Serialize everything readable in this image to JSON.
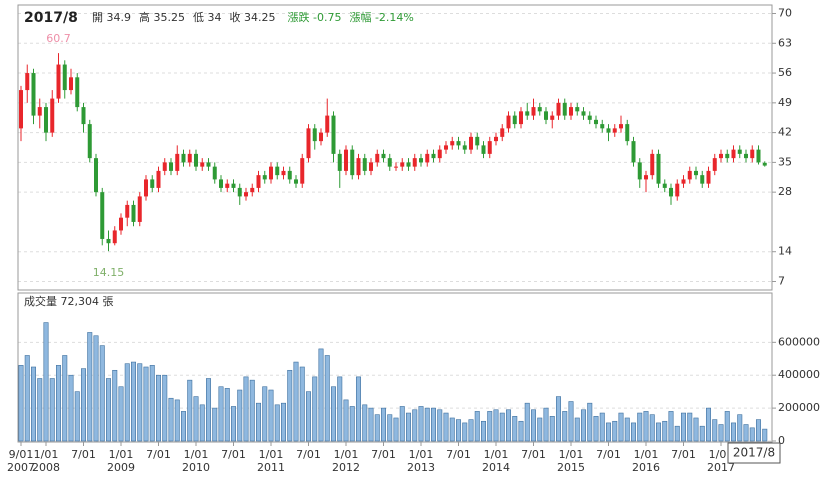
{
  "header": {
    "period": "2017/8",
    "items": [
      "開 34.9",
      "高 35.25",
      "低 34",
      "收 34.25"
    ],
    "change_items": [
      "漲跌 -0.75",
      "漲幅 -2.14%"
    ]
  },
  "chart_data": [
    {
      "type": "candlestick",
      "ylim": [
        5,
        72
      ],
      "yticks": [
        7,
        14,
        28,
        35,
        42,
        49,
        56,
        63,
        70
      ],
      "grid": true,
      "up_color": "#e8262b",
      "down_color": "#2e9a35",
      "annotations": [
        {
          "text": "60.7",
          "at": "high",
          "color": "#ee8fa8"
        },
        {
          "text": "14.15",
          "at": "low",
          "color": "#7fb069"
        }
      ],
      "series": [
        {
          "name": "OHLC",
          "values": [
            [
              43,
              53,
              40,
              52
            ],
            [
              52,
              58,
              49,
              56
            ],
            [
              56,
              57,
              44,
              46
            ],
            [
              46,
              50,
              43,
              48
            ],
            [
              48,
              49,
              40,
              42
            ],
            [
              42,
              52,
              41,
              50
            ],
            [
              50,
              60.7,
              49,
              58
            ],
            [
              58,
              59,
              50,
              52
            ],
            [
              52,
              57,
              51,
              55
            ],
            [
              55,
              56,
              47,
              48
            ],
            [
              48,
              49,
              42,
              44
            ],
            [
              44,
              45,
              35,
              36
            ],
            [
              36,
              37,
              27,
              28
            ],
            [
              28,
              29,
              15.5,
              17
            ],
            [
              17,
              19,
              14.15,
              16
            ],
            [
              16,
              20,
              15.5,
              19
            ],
            [
              19,
              23,
              18,
              22
            ],
            [
              22,
              26,
              20,
              25
            ],
            [
              25,
              26,
              20,
              21
            ],
            [
              21,
              28,
              20,
              27
            ],
            [
              27,
              32,
              26,
              31
            ],
            [
              31,
              32,
              28,
              29
            ],
            [
              29,
              34,
              28,
              33
            ],
            [
              33,
              36,
              32,
              35
            ],
            [
              35,
              36,
              32,
              33
            ],
            [
              33,
              39,
              32,
              37
            ],
            [
              37,
              38,
              34,
              35
            ],
            [
              35,
              38,
              34,
              37
            ],
            [
              37,
              38,
              33,
              34
            ],
            [
              34,
              36,
              33,
              35
            ],
            [
              35,
              36,
              33,
              34
            ],
            [
              34,
              35,
              30,
              31
            ],
            [
              31,
              32,
              28,
              29
            ],
            [
              29,
              31,
              28,
              30
            ],
            [
              30,
              31,
              28,
              29
            ],
            [
              29,
              30,
              25,
              27
            ],
            [
              27,
              29,
              26,
              28
            ],
            [
              28,
              30,
              27,
              29
            ],
            [
              29,
              33,
              28,
              32
            ],
            [
              32,
              33,
              30,
              31
            ],
            [
              31,
              35,
              30,
              34
            ],
            [
              34,
              35,
              31,
              32
            ],
            [
              32,
              34,
              31,
              33
            ],
            [
              33,
              34,
              30,
              31
            ],
            [
              31,
              32,
              29,
              30
            ],
            [
              30,
              37,
              29,
              36
            ],
            [
              36,
              44,
              35,
              43
            ],
            [
              43,
              44,
              38,
              40
            ],
            [
              40,
              43,
              39,
              42
            ],
            [
              42,
              50,
              41,
              46
            ],
            [
              46,
              47,
              35,
              37
            ],
            [
              37,
              38,
              29,
              33
            ],
            [
              33,
              39,
              32,
              38
            ],
            [
              38,
              39,
              31,
              32
            ],
            [
              32,
              37,
              31,
              36
            ],
            [
              36,
              37,
              32,
              33
            ],
            [
              33,
              36,
              32,
              35
            ],
            [
              35,
              38,
              34,
              37
            ],
            [
              37,
              38,
              35,
              36
            ],
            [
              36,
              37,
              33,
              34
            ],
            [
              34,
              35,
              33,
              34
            ],
            [
              34,
              36,
              33,
              35
            ],
            [
              35,
              36,
              33,
              34
            ],
            [
              34,
              37,
              33,
              36
            ],
            [
              36,
              37,
              34,
              35
            ],
            [
              35,
              38,
              34,
              37
            ],
            [
              37,
              38,
              35,
              36
            ],
            [
              36,
              39,
              35,
              38
            ],
            [
              38,
              40,
              37,
              39
            ],
            [
              39,
              41,
              38,
              40
            ],
            [
              40,
              41,
              38,
              39
            ],
            [
              39,
              40,
              37,
              38
            ],
            [
              38,
              42,
              37,
              41
            ],
            [
              41,
              42,
              38,
              39
            ],
            [
              39,
              40,
              36,
              37
            ],
            [
              37,
              41,
              36,
              40
            ],
            [
              40,
              42,
              39,
              41
            ],
            [
              41,
              44,
              40,
              43
            ],
            [
              43,
              47,
              42,
              46
            ],
            [
              46,
              47,
              43,
              44
            ],
            [
              44,
              48,
              43,
              47
            ],
            [
              47,
              49,
              45,
              46
            ],
            [
              46,
              50,
              45,
              48
            ],
            [
              48,
              49,
              46,
              47
            ],
            [
              47,
              48,
              44,
              45
            ],
            [
              45,
              47,
              43,
              46
            ],
            [
              46,
              50,
              45,
              49
            ],
            [
              49,
              50,
              45,
              46
            ],
            [
              46,
              49,
              45,
              48
            ],
            [
              48,
              49,
              46,
              47
            ],
            [
              47,
              48,
              45,
              46
            ],
            [
              46,
              47,
              44,
              45
            ],
            [
              45,
              46,
              43,
              44
            ],
            [
              44,
              45,
              42,
              43
            ],
            [
              43,
              44,
              40,
              42
            ],
            [
              42,
              44,
              41,
              43
            ],
            [
              43,
              46,
              42,
              44
            ],
            [
              44,
              45,
              39,
              40
            ],
            [
              40,
              41,
              34,
              35
            ],
            [
              35,
              36,
              29,
              31
            ],
            [
              31,
              33,
              28,
              32
            ],
            [
              32,
              38,
              31,
              37
            ],
            [
              37,
              38,
              29,
              30
            ],
            [
              30,
              31,
              28,
              29
            ],
            [
              29,
              30,
              25,
              27
            ],
            [
              27,
              31,
              26,
              30
            ],
            [
              30,
              32,
              29,
              31
            ],
            [
              31,
              34,
              30,
              33
            ],
            [
              33,
              34,
              31,
              32
            ],
            [
              32,
              33,
              29,
              30
            ],
            [
              30,
              34,
              29,
              33
            ],
            [
              33,
              37,
              32,
              36
            ],
            [
              36,
              38,
              35,
              37
            ],
            [
              37,
              38,
              35,
              36
            ],
            [
              36,
              39,
              35,
              38
            ],
            [
              38,
              39,
              36,
              37
            ],
            [
              37,
              38,
              35,
              36
            ],
            [
              36,
              39,
              35,
              38
            ],
            [
              38,
              39,
              34.5,
              35
            ],
            [
              34.9,
              35.25,
              34,
              34.25
            ]
          ]
        }
      ]
    },
    {
      "type": "bar",
      "title": "成交量 72,304 張",
      "ylim": [
        0,
        900000
      ],
      "yticks": [
        0,
        200000,
        400000,
        600000
      ],
      "grid": true,
      "color": "#8fb8df",
      "edge_color": "#3d6f9e",
      "xticks": [
        {
          "label": "9/01",
          "year": "2007"
        },
        {
          "label": "1/01",
          "year": "2008"
        },
        {
          "label": "7/01"
        },
        {
          "label": "1/01",
          "year": "2009"
        },
        {
          "label": "7/01"
        },
        {
          "label": "1/01",
          "year": "2010"
        },
        {
          "label": "7/01"
        },
        {
          "label": "1/01",
          "year": "2011"
        },
        {
          "label": "7/01"
        },
        {
          "label": "1/01",
          "year": "2012"
        },
        {
          "label": "7/01"
        },
        {
          "label": "1/01",
          "year": "2013"
        },
        {
          "label": "7/01"
        },
        {
          "label": "1/01",
          "year": "2014"
        },
        {
          "label": "7/01"
        },
        {
          "label": "1/01",
          "year": "2015"
        },
        {
          "label": "7/01"
        },
        {
          "label": "1/01",
          "year": "2016"
        },
        {
          "label": "7/01"
        },
        {
          "label": "1/01",
          "year": "2017"
        }
      ],
      "series": [
        {
          "name": "成交量",
          "values": [
            460000,
            520000,
            450000,
            380000,
            720000,
            380000,
            460000,
            520000,
            400000,
            300000,
            440000,
            660000,
            640000,
            580000,
            380000,
            430000,
            330000,
            470000,
            480000,
            470000,
            450000,
            460000,
            400000,
            400000,
            260000,
            250000,
            180000,
            370000,
            270000,
            220000,
            380000,
            200000,
            330000,
            320000,
            210000,
            310000,
            390000,
            370000,
            230000,
            330000,
            310000,
            220000,
            230000,
            430000,
            480000,
            450000,
            300000,
            390000,
            560000,
            520000,
            330000,
            390000,
            250000,
            210000,
            390000,
            220000,
            200000,
            160000,
            200000,
            160000,
            140000,
            210000,
            170000,
            190000,
            210000,
            200000,
            200000,
            190000,
            170000,
            140000,
            130000,
            110000,
            130000,
            180000,
            120000,
            180000,
            190000,
            170000,
            190000,
            150000,
            120000,
            230000,
            190000,
            140000,
            200000,
            150000,
            270000,
            180000,
            240000,
            140000,
            190000,
            230000,
            150000,
            170000,
            110000,
            120000,
            170000,
            140000,
            110000,
            170000,
            180000,
            160000,
            110000,
            120000,
            180000,
            90000,
            170000,
            170000,
            140000,
            90000,
            200000,
            130000,
            100000,
            180000,
            110000,
            160000,
            100000,
            80000,
            130000,
            72304
          ]
        }
      ]
    }
  ]
}
